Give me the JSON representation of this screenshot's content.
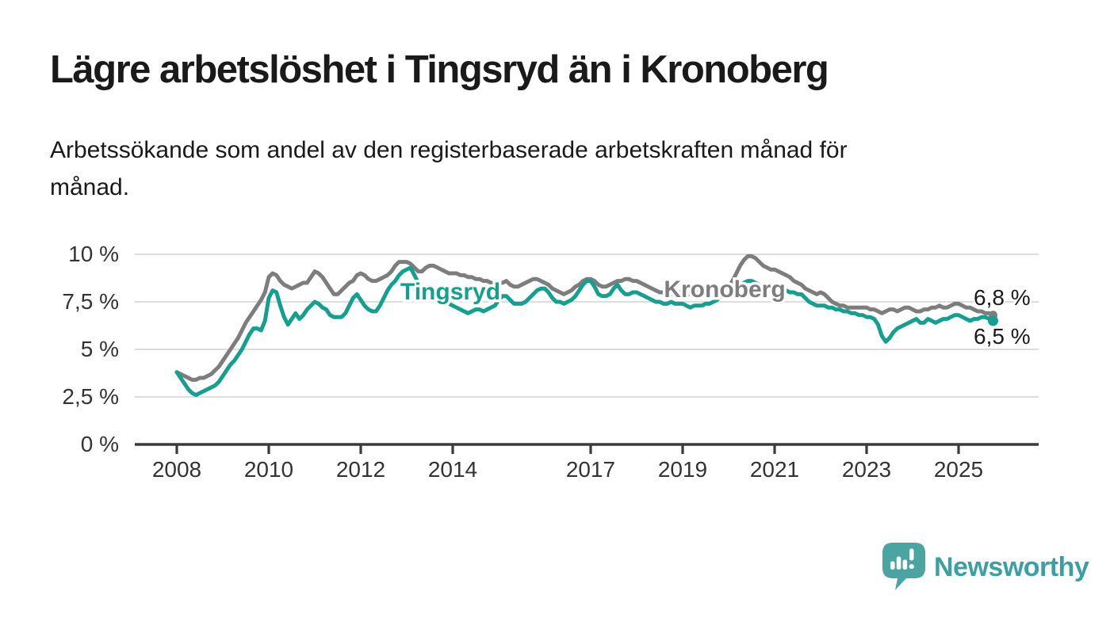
{
  "header": {
    "title": "Lägre arbetslöshet i Tingsryd än i Kronoberg",
    "subtitle": "Arbetssökande som andel av den registerbaserade arbetskraften månad för månad.",
    "subtitle_lines": [
      "Arbetssökande som andel av den registerbaserade arbetskraften månad för",
      "månad."
    ]
  },
  "theme": {
    "background": "#ffffff",
    "text_dark": "#1a1a1a",
    "tick_text": "#333333",
    "grid_color": "#d8d8d8",
    "axis_color": "#3a3a3a",
    "teal": "#14a091",
    "gray": "#7d7d7d",
    "logo_icon_color": "#4aa5a2",
    "brand_text_color": "#3ba0a2"
  },
  "footer": {
    "brand": "Newsworthy",
    "logo_icon": "bar-chart-speech-bubble-icon"
  },
  "chart_data": {
    "type": "line",
    "x_start": "2008-01",
    "x_end": "2025-10",
    "x_interval": "month",
    "ylim": [
      0,
      10.5
    ],
    "grid": true,
    "y_ticks": [
      {
        "value": 0,
        "label": "0 %"
      },
      {
        "value": 2.5,
        "label": "2,5 %"
      },
      {
        "value": 5,
        "label": "5 %"
      },
      {
        "value": 7.5,
        "label": "7,5 %"
      },
      {
        "value": 10,
        "label": "10 %"
      }
    ],
    "x_ticks": [
      {
        "year": 2008,
        "label": "2008"
      },
      {
        "year": 2010,
        "label": "2010"
      },
      {
        "year": 2012,
        "label": "2012"
      },
      {
        "year": 2014,
        "label": "2014"
      },
      {
        "year": 2017,
        "label": "2017"
      },
      {
        "year": 2019,
        "label": "2019"
      },
      {
        "year": 2021,
        "label": "2021"
      },
      {
        "year": 2023,
        "label": "2023"
      },
      {
        "year": 2025,
        "label": "2025"
      }
    ],
    "series": [
      {
        "name": "Kronoberg",
        "color": "#7d7d7d",
        "end_label": "6,8 %",
        "last_value": 6.8,
        "values": [
          3.8,
          3.7,
          3.6,
          3.5,
          3.4,
          3.4,
          3.5,
          3.5,
          3.6,
          3.7,
          3.9,
          4.1,
          4.4,
          4.7,
          5.0,
          5.3,
          5.6,
          6.0,
          6.4,
          6.7,
          7.0,
          7.3,
          7.6,
          8.0,
          8.8,
          9.0,
          8.9,
          8.6,
          8.4,
          8.3,
          8.2,
          8.3,
          8.4,
          8.5,
          8.5,
          8.8,
          9.1,
          9.0,
          8.8,
          8.5,
          8.2,
          7.9,
          7.9,
          8.1,
          8.3,
          8.5,
          8.6,
          8.9,
          9.0,
          8.9,
          8.7,
          8.6,
          8.6,
          8.7,
          8.8,
          8.9,
          9.1,
          9.4,
          9.6,
          9.6,
          9.6,
          9.5,
          9.3,
          9.1,
          9.1,
          9.3,
          9.4,
          9.4,
          9.3,
          9.2,
          9.1,
          9.0,
          9.0,
          9.0,
          8.9,
          8.9,
          8.8,
          8.8,
          8.7,
          8.7,
          8.6,
          8.6,
          8.5,
          8.5,
          8.5,
          8.5,
          8.6,
          8.4,
          8.3,
          8.3,
          8.4,
          8.5,
          8.6,
          8.7,
          8.7,
          8.6,
          8.5,
          8.4,
          8.2,
          8.1,
          8.0,
          7.9,
          8.0,
          8.1,
          8.3,
          8.4,
          8.6,
          8.7,
          8.7,
          8.6,
          8.4,
          8.3,
          8.3,
          8.4,
          8.5,
          8.6,
          8.6,
          8.7,
          8.7,
          8.6,
          8.6,
          8.5,
          8.4,
          8.3,
          8.2,
          8.1,
          8.0,
          8.0,
          7.9,
          7.9,
          7.9,
          8.0,
          8.0,
          7.9,
          7.9,
          7.9,
          8.0,
          8.0,
          8.0,
          8.1,
          8.1,
          8.1,
          8.2,
          8.2,
          8.3,
          8.6,
          9.0,
          9.4,
          9.7,
          9.9,
          9.9,
          9.8,
          9.6,
          9.4,
          9.3,
          9.2,
          9.2,
          9.1,
          9.0,
          8.9,
          8.8,
          8.6,
          8.5,
          8.4,
          8.2,
          8.1,
          8.0,
          7.9,
          8.0,
          7.9,
          7.7,
          7.5,
          7.4,
          7.3,
          7.3,
          7.2,
          7.2,
          7.2,
          7.2,
          7.2,
          7.2,
          7.1,
          7.1,
          7.0,
          6.9,
          7.0,
          7.1,
          7.1,
          7.0,
          7.1,
          7.2,
          7.2,
          7.1,
          7.0,
          7.0,
          7.1,
          7.1,
          7.2,
          7.2,
          7.3,
          7.2,
          7.2,
          7.3,
          7.4,
          7.4,
          7.3,
          7.2,
          7.2,
          7.1,
          7.0,
          7.0,
          6.9,
          6.9,
          6.8
        ]
      },
      {
        "name": "Tingsryd",
        "color": "#14a091",
        "end_label": "6,5 %",
        "last_value": 6.5,
        "values": [
          3.8,
          3.5,
          3.2,
          2.9,
          2.7,
          2.6,
          2.7,
          2.8,
          2.9,
          3.0,
          3.1,
          3.3,
          3.6,
          3.9,
          4.2,
          4.4,
          4.7,
          5.0,
          5.4,
          5.8,
          6.1,
          6.1,
          6.0,
          6.5,
          7.7,
          8.1,
          8.0,
          7.3,
          6.7,
          6.3,
          6.6,
          6.9,
          6.6,
          6.8,
          7.1,
          7.3,
          7.5,
          7.4,
          7.2,
          7.1,
          6.8,
          6.7,
          6.7,
          6.7,
          6.9,
          7.3,
          7.7,
          7.9,
          7.6,
          7.3,
          7.1,
          7.0,
          7.0,
          7.3,
          7.7,
          8.1,
          8.4,
          8.6,
          8.9,
          9.1,
          9.2,
          9.3,
          8.9,
          8.5,
          8.2,
          8.0,
          8.1,
          8.2,
          8.0,
          7.8,
          7.6,
          7.4,
          7.3,
          7.2,
          7.1,
          7.0,
          6.9,
          7.0,
          7.1,
          7.1,
          7.0,
          7.1,
          7.2,
          7.3,
          7.6,
          7.8,
          7.8,
          7.6,
          7.4,
          7.4,
          7.4,
          7.5,
          7.7,
          7.9,
          8.1,
          8.2,
          8.2,
          8.0,
          7.7,
          7.5,
          7.5,
          7.4,
          7.5,
          7.6,
          7.8,
          8.1,
          8.4,
          8.6,
          8.6,
          8.3,
          7.9,
          7.8,
          7.8,
          7.9,
          8.2,
          8.4,
          8.1,
          7.9,
          7.9,
          8.0,
          8.0,
          7.9,
          7.8,
          7.7,
          7.6,
          7.5,
          7.5,
          7.4,
          7.4,
          7.5,
          7.4,
          7.4,
          7.4,
          7.3,
          7.2,
          7.3,
          7.3,
          7.3,
          7.4,
          7.4,
          7.5,
          7.6,
          7.8,
          7.8,
          7.8,
          7.9,
          8.2,
          8.4,
          8.5,
          8.6,
          8.6,
          8.5,
          8.4,
          8.3,
          8.3,
          8.2,
          8.2,
          8.2,
          8.1,
          8.1,
          8.0,
          8.0,
          7.9,
          7.9,
          7.7,
          7.5,
          7.4,
          7.3,
          7.3,
          7.3,
          7.2,
          7.2,
          7.1,
          7.1,
          7.0,
          7.0,
          6.9,
          6.9,
          6.8,
          6.8,
          6.7,
          6.7,
          6.6,
          6.3,
          5.7,
          5.4,
          5.6,
          5.9,
          6.1,
          6.2,
          6.3,
          6.4,
          6.5,
          6.6,
          6.4,
          6.4,
          6.6,
          6.5,
          6.4,
          6.5,
          6.6,
          6.6,
          6.7,
          6.8,
          6.8,
          6.7,
          6.6,
          6.5,
          6.6,
          6.6,
          6.7,
          6.7,
          6.6,
          6.5
        ]
      }
    ]
  }
}
